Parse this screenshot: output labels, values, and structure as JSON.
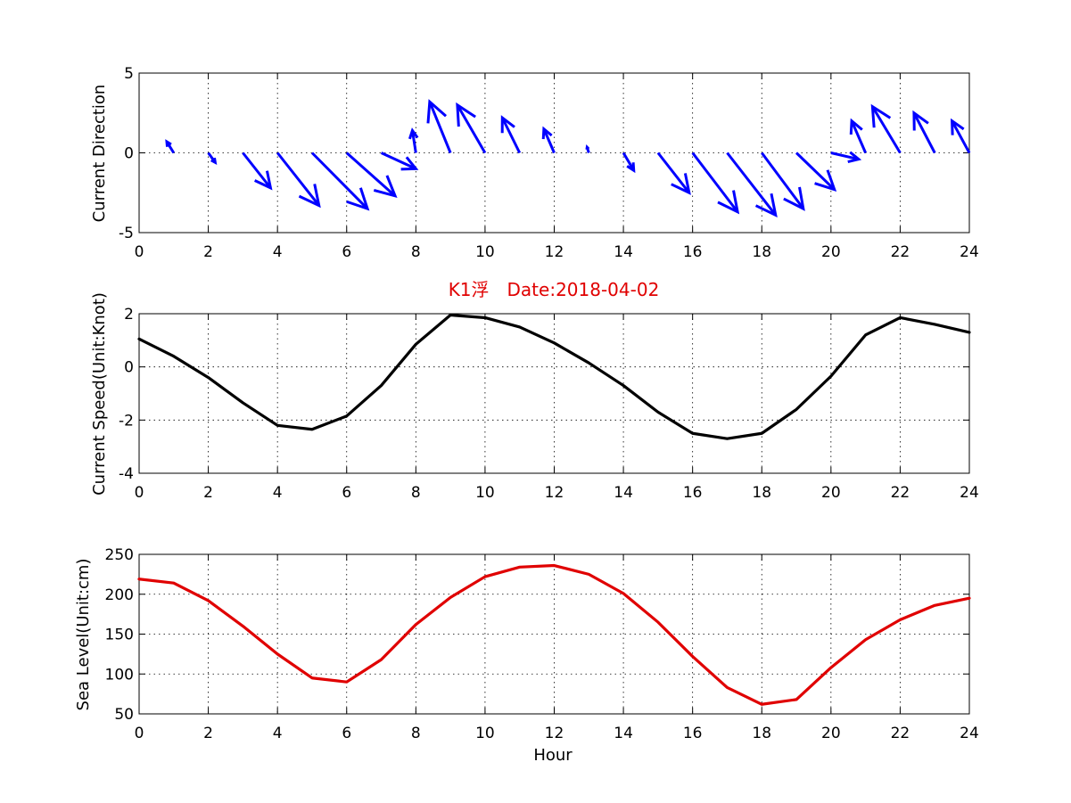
{
  "figure": {
    "title": "K1浮　Date:2018-04-02",
    "title_color": "#e00000",
    "background": "#ffffff"
  },
  "chart_data": [
    {
      "type": "quiver",
      "ylabel": "Current Direction",
      "xlabel": "",
      "xlim": [
        0,
        24
      ],
      "ylim": [
        -5,
        5
      ],
      "xticks": [
        "0",
        "2",
        "4",
        "6",
        "8",
        "10",
        "12",
        "14",
        "16",
        "18",
        "20",
        "22",
        "24"
      ],
      "yticks": [
        "-5",
        "0",
        "5"
      ],
      "grid": true,
      "color": "#0000ff",
      "arrows": {
        "x": [
          1,
          2,
          3,
          4,
          5,
          6,
          7,
          8,
          9,
          10,
          11,
          12,
          13,
          14,
          15,
          16,
          17,
          18,
          19,
          20,
          21,
          22,
          23,
          24
        ],
        "u": [
          -0.2,
          0.2,
          0.8,
          1.2,
          1.6,
          1.4,
          1.0,
          -0.1,
          -0.6,
          -0.8,
          -0.5,
          -0.3,
          -0.05,
          0.3,
          0.9,
          1.3,
          1.4,
          1.2,
          1.1,
          0.8,
          -0.4,
          -0.8,
          -0.6,
          -0.5
        ],
        "v": [
          0.7,
          -0.6,
          -2.2,
          -3.3,
          -3.5,
          -2.7,
          -1.0,
          1.4,
          3.2,
          3.0,
          2.2,
          1.5,
          0.35,
          -1.1,
          -2.5,
          -3.7,
          -3.9,
          -3.5,
          -2.3,
          -0.4,
          2.0,
          2.9,
          2.5,
          2.0
        ]
      }
    },
    {
      "type": "line",
      "ylabel": "Current Speed(Unit:Knot)",
      "xlabel": "",
      "xlim": [
        0,
        24
      ],
      "ylim": [
        -4,
        2
      ],
      "xticks": [
        "0",
        "2",
        "4",
        "6",
        "8",
        "10",
        "12",
        "14",
        "16",
        "18",
        "20",
        "22",
        "24"
      ],
      "yticks": [
        "-4",
        "-2",
        "0",
        "2"
      ],
      "grid": true,
      "series": [
        {
          "color": "#000000",
          "x": [
            0,
            1,
            2,
            3,
            4,
            5,
            6,
            7,
            8,
            9,
            10,
            11,
            12,
            13,
            14,
            15,
            16,
            17,
            18,
            19,
            20,
            21,
            22,
            23,
            24
          ],
          "values": [
            1.05,
            0.4,
            -0.4,
            -1.35,
            -2.2,
            -2.35,
            -1.85,
            -0.7,
            0.85,
            1.95,
            1.85,
            1.5,
            0.9,
            0.15,
            -0.7,
            -1.7,
            -2.5,
            -2.7,
            -2.5,
            -1.6,
            -0.35,
            1.2,
            1.85,
            1.6,
            1.3
          ]
        }
      ]
    },
    {
      "type": "line",
      "ylabel": "Sea Level(Unit:cm)",
      "xlabel": "Hour",
      "xlim": [
        0,
        24
      ],
      "ylim": [
        50,
        250
      ],
      "xticks": [
        "0",
        "2",
        "4",
        "6",
        "8",
        "10",
        "12",
        "14",
        "16",
        "18",
        "20",
        "22",
        "24"
      ],
      "yticks": [
        "50",
        "100",
        "150",
        "200",
        "250"
      ],
      "grid": true,
      "series": [
        {
          "color": "#e00000",
          "x": [
            0,
            1,
            2,
            3,
            4,
            5,
            6,
            7,
            8,
            9,
            10,
            11,
            12,
            13,
            14,
            15,
            16,
            17,
            18,
            19,
            20,
            21,
            22,
            23,
            24
          ],
          "values": [
            219,
            214,
            192,
            160,
            125,
            95,
            90,
            118,
            162,
            196,
            222,
            234,
            236,
            225,
            201,
            165,
            122,
            83,
            62,
            68,
            108,
            143,
            168,
            186,
            195
          ]
        }
      ]
    }
  ]
}
